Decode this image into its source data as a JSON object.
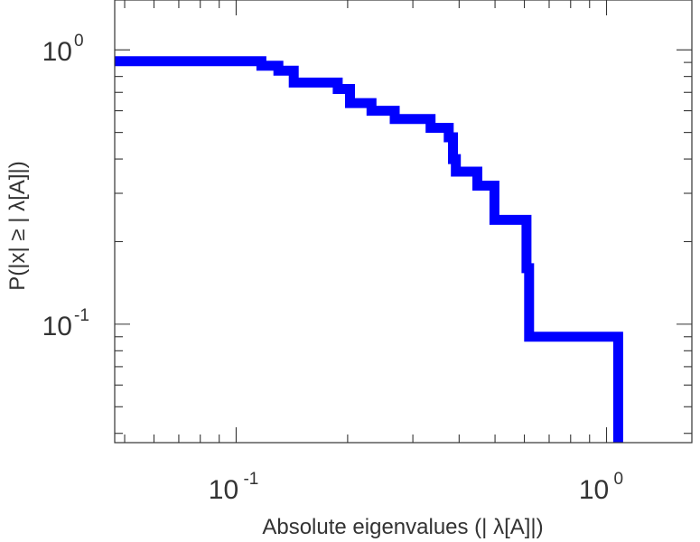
{
  "chart_data": {
    "type": "line",
    "xlabel": "Absolute eigenvalues (|     λ[A]|)",
    "ylabel": "P(|x|  ≥ | λ[A]|)",
    "x_scale": "log",
    "y_scale": "log",
    "xlim": [
      0.047,
      1.7
    ],
    "ylim": [
      0.037,
      1.52
    ],
    "x_ticks": [
      {
        "value": 0.1,
        "base": "10",
        "exp": "-1"
      },
      {
        "value": 1.0,
        "base": "10",
        "exp": "0"
      }
    ],
    "y_ticks": [
      {
        "value": 0.1,
        "base": "10",
        "exp": "-1"
      },
      {
        "value": 1.0,
        "base": "10",
        "exp": "0"
      }
    ],
    "grid": false,
    "series": [
      {
        "color": "#0000ff",
        "step": "post",
        "x": [
          0.047,
          0.117,
          0.13,
          0.143,
          0.188,
          0.203,
          0.232,
          0.268,
          0.335,
          0.375,
          0.385,
          0.392,
          0.448,
          0.498,
          0.608,
          0.618,
          1.075
        ],
        "y": [
          0.909,
          0.875,
          0.84,
          0.76,
          0.72,
          0.64,
          0.6,
          0.56,
          0.52,
          0.48,
          0.4,
          0.36,
          0.32,
          0.24,
          0.16,
          0.09,
          0.037
        ]
      }
    ]
  }
}
